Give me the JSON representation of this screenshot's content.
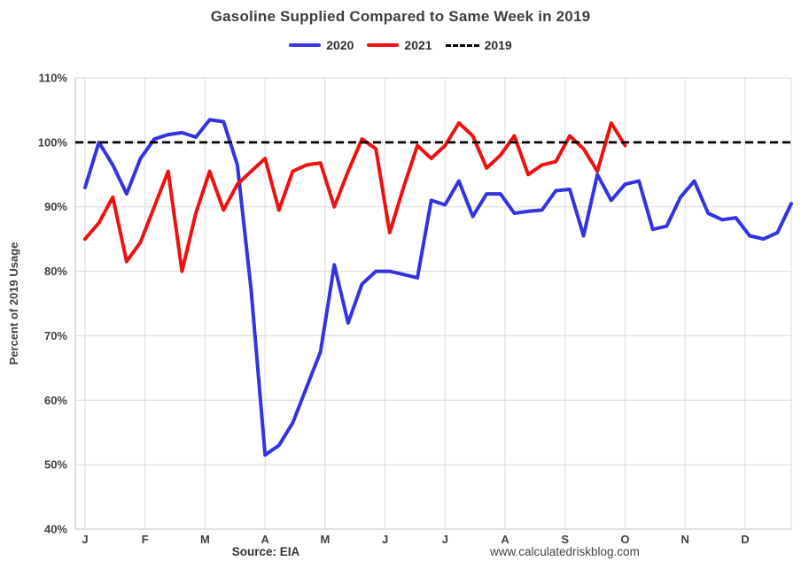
{
  "title": "Gasoline Supplied Compared to Same Week in 2019",
  "footer": {
    "source": "Source: EIA",
    "website": "www.calculatedriskblog.com"
  },
  "chart_data": {
    "type": "line",
    "title": "Gasoline Supplied Compared to Same Week in 2019",
    "xlabel": "",
    "ylabel": "Percent of 2019 Usage",
    "ylim": [
      40,
      110
    ],
    "grid": true,
    "legend_position": "top",
    "colors": {
      "grid": "#d9d9d9",
      "axis": "#bfbfbf",
      "text": "#404040",
      "blue_2020": "#3333e0",
      "red_2021": "#ee1111",
      "black_2019": "#000000"
    },
    "y_ticks": [
      {
        "value": 110,
        "label": "110%"
      },
      {
        "value": 100,
        "label": "100%"
      },
      {
        "value": 90,
        "label": "90%"
      },
      {
        "value": 80,
        "label": "80%"
      },
      {
        "value": 70,
        "label": "70%"
      },
      {
        "value": 60,
        "label": "60%"
      },
      {
        "value": 50,
        "label": "50%"
      },
      {
        "value": 40,
        "label": "40%"
      }
    ],
    "x_tick_labels": [
      "J",
      "F",
      "M",
      "A",
      "M",
      "J",
      "J",
      "A",
      "S",
      "O",
      "N",
      "D"
    ],
    "weeks": 52,
    "series": [
      {
        "name": "2020",
        "color": "#3333e0",
        "style": "solid",
        "values": [
          93,
          100,
          96.5,
          92,
          97.5,
          100.5,
          101.2,
          101.5,
          100.8,
          103.5,
          103.2,
          96.5,
          77,
          51.5,
          53,
          56.5,
          62,
          67.5,
          81,
          72,
          78,
          80,
          80,
          79.5,
          79,
          91,
          90.3,
          94,
          88.5,
          92,
          92,
          89,
          89.3,
          89.5,
          92.5,
          92.7,
          85.5,
          95,
          91,
          93.5,
          94,
          86.5,
          87,
          91.5,
          94,
          89,
          88,
          88.3,
          85.5,
          85,
          86,
          90.5
        ]
      },
      {
        "name": "2021",
        "color": "#ee1111",
        "style": "solid",
        "values": [
          85,
          87.5,
          91.5,
          81.5,
          84.5,
          90,
          95.5,
          80,
          89,
          95.5,
          89.5,
          93.5,
          95.5,
          97.5,
          89.5,
          95.5,
          96.5,
          96.8,
          90,
          95.5,
          100.5,
          99,
          86,
          93,
          99.5,
          97.5,
          99.5,
          103,
          101,
          96,
          98,
          101,
          95,
          96.5,
          97,
          101,
          99,
          95.5,
          103,
          99.5
        ]
      },
      {
        "name": "2019",
        "color": "#000000",
        "style": "dashed",
        "constant": 100
      }
    ]
  }
}
